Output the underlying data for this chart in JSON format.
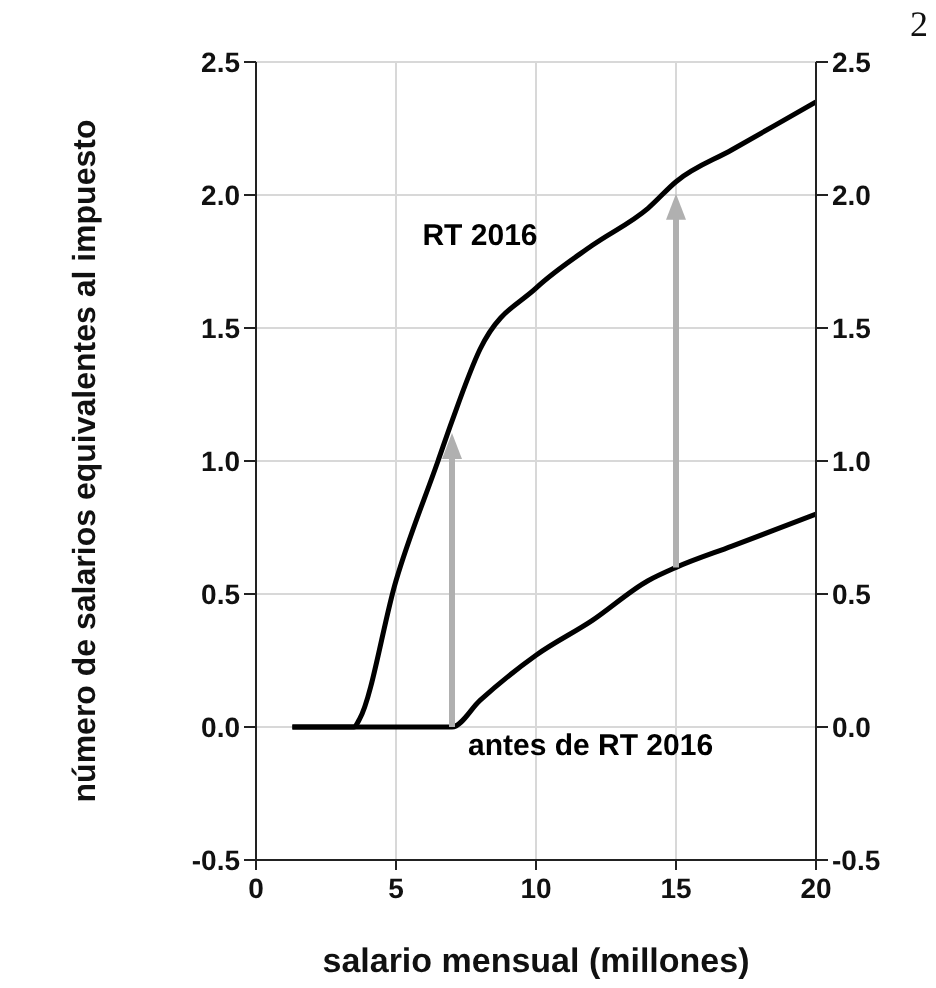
{
  "chart_data": {
    "type": "line",
    "xlabel": "salario mensual (millones)",
    "ylabel": "número de salarios equivalentes al impuesto",
    "x": [
      1.3,
      3.5,
      3.7,
      5,
      6.5,
      7,
      8,
      10,
      12,
      14,
      15,
      17,
      20
    ],
    "series": [
      {
        "name": "RT 2016",
        "color": "#000000",
        "values": [
          0,
          0,
          0.03,
          0.55,
          1.0,
          1.15,
          1.42,
          1.65,
          1.81,
          1.95,
          2.05,
          2.17,
          2.35
        ]
      },
      {
        "name": "antes de RT 2016",
        "color": "#000000",
        "values": [
          0,
          0,
          0,
          0,
          0,
          0,
          0.1,
          0.27,
          0.4,
          0.55,
          0.6,
          0.68,
          0.8
        ]
      }
    ],
    "xlim": [
      0,
      20
    ],
    "xticks": [
      0,
      5,
      10,
      15,
      20
    ],
    "ylim": [
      -0.5,
      2.5
    ],
    "yticks": [
      {
        "value": -0.5,
        "label": "-0.5"
      },
      {
        "value": 0,
        "label": "0.0"
      },
      {
        "value": 0.5,
        "label": "0.5"
      },
      {
        "value": 1,
        "label": "1.0"
      },
      {
        "value": 1.5,
        "label": "1.5"
      },
      {
        "value": 2,
        "label": "2.0"
      },
      {
        "value": 2.5,
        "label": "2.5"
      }
    ],
    "y2lim": [
      -0.5,
      2.5
    ],
    "y2ticks": [
      {
        "value": -0.5,
        "label": "-0.5"
      },
      {
        "value": 0,
        "label": "0.0"
      },
      {
        "value": 0.5,
        "label": "0.5"
      },
      {
        "value": 1,
        "label": "1.0"
      },
      {
        "value": 1.5,
        "label": "1.5"
      },
      {
        "value": 2,
        "label": "2.0"
      },
      {
        "value": 2.5,
        "label": "2.5"
      }
    ],
    "grid": true,
    "legend": false,
    "marker": "none",
    "line_style": "solid",
    "annotations": [
      "2"
    ]
  }
}
